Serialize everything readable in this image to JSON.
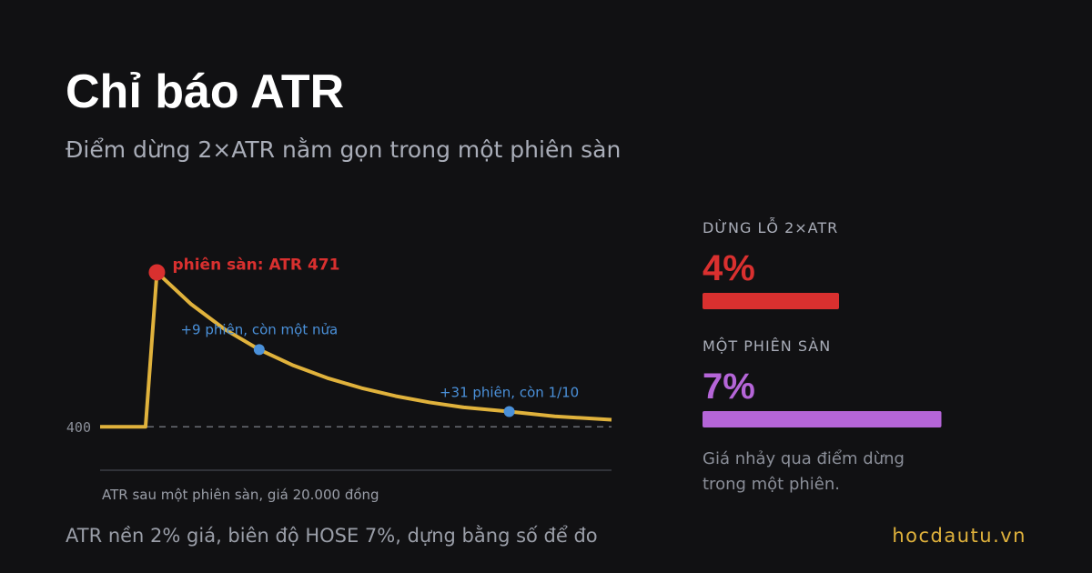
{
  "title": "Chỉ báo ATR",
  "subtitle": "Điểm dừng 2×ATR nằm gọn trong một phiên sàn",
  "chart_data": {
    "type": "line",
    "x_label": "ATR sau một phiên sàn, giá 20.000 đồng",
    "x": [
      -5,
      -1,
      0,
      3,
      6,
      9,
      12,
      15,
      18,
      21,
      24,
      27,
      31,
      35,
      40
    ],
    "series": [
      {
        "name": "ATR",
        "color": "#e0b23c",
        "values": [
          400,
          400,
          471,
          456.4,
          444.7,
          435.5,
          428.2,
          422.4,
          417.8,
          414.1,
          411.2,
          408.9,
          407,
          404.8,
          403.2
        ]
      }
    ],
    "xlim": [
      -5,
      40
    ],
    "ylim": [
      380,
      485
    ],
    "yticks": [
      400
    ],
    "annotations": [
      {
        "x": 0,
        "y": 471,
        "text": "phiên sàn: ATR 471",
        "color": "#d9302f"
      },
      {
        "x": 9,
        "y": 435.5,
        "text": "+9 phiên, còn một nửa",
        "color": "#4a90d9"
      },
      {
        "x": 31,
        "y": 407,
        "text": "+31 phiên, còn 1/10",
        "color": "#4a90d9"
      }
    ]
  },
  "stats": [
    {
      "label": "DỪNG LỖ 2×ATR",
      "value": 4,
      "value_label": "4%",
      "color": "#d9302f"
    },
    {
      "label": "MỘT PHIÊN SÀN",
      "value": 7,
      "value_label": "7%",
      "color": "#b565d8"
    }
  ],
  "note": [
    "Giá nhảy qua điểm dừng",
    "trong một phiên."
  ],
  "footer": "ATR nền 2% giá, biên độ HOSE 7%, dựng bằng số để đo",
  "brand": "hocdautu.vn"
}
